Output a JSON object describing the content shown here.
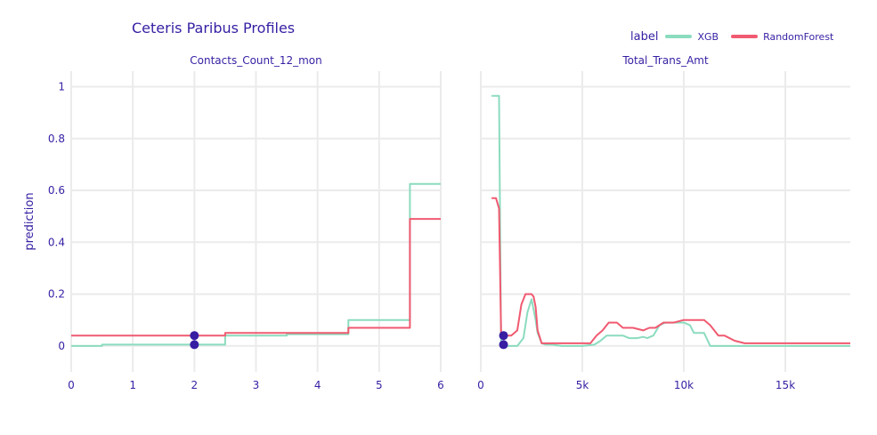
{
  "chart_data": {
    "type": "line",
    "title": "Ceteris Paribus Profiles",
    "ylabel": "prediction",
    "ylim": [
      -0.1,
      1.06
    ],
    "yticks": [
      0,
      0.2,
      0.4,
      0.6,
      0.8,
      1
    ],
    "ytick_labels": [
      "0",
      "0.2",
      "0.4",
      "0.6",
      "0.8",
      "1"
    ],
    "legend": {
      "title": "label",
      "position": "top-right",
      "entries": [
        {
          "name": "XGB",
          "color": "#8bdcbe"
        },
        {
          "name": "RandomForest",
          "color": "#f05a71"
        }
      ]
    },
    "panels": [
      {
        "title": "Contacts_Count_12_mon",
        "xlim": [
          0,
          6
        ],
        "xticks": [
          0,
          1,
          2,
          3,
          4,
          5,
          6
        ],
        "xtick_labels": [
          "0",
          "1",
          "2",
          "3",
          "4",
          "5",
          "6"
        ],
        "series": [
          {
            "name": "XGB",
            "color": "#8bdcbe",
            "type": "step",
            "x": [
              0,
              0.5,
              2.5,
              3.5,
              4.5,
              5.5,
              6
            ],
            "y": [
              0,
              0.005,
              0.04,
              0.045,
              0.1,
              0.625,
              0.625
            ]
          },
          {
            "name": "RandomForest",
            "color": "#f05a71",
            "type": "step",
            "x": [
              0,
              2.5,
              4.5,
              5.5,
              6
            ],
            "y": [
              0.04,
              0.05,
              0.07,
              0.49,
              0.49
            ]
          }
        ],
        "observation": {
          "x": 2,
          "y": [
            0.04,
            0.005
          ]
        }
      },
      {
        "title": "Total_Trans_Amt",
        "xlim": [
          0,
          18200
        ],
        "xticks": [
          0,
          5000,
          10000,
          15000
        ],
        "xtick_labels": [
          "0",
          "5k",
          "10k",
          "15k"
        ],
        "series": [
          {
            "name": "XGB",
            "color": "#8bdcbe",
            "type": "line",
            "x": [
              530,
              900,
              1000,
              1150,
              1800,
              2100,
              2300,
              2500,
              2700,
              2800,
              3000,
              3200,
              3500,
              4000,
              5000,
              5600,
              5900,
              6200,
              6500,
              7000,
              7300,
              7700,
              8000,
              8200,
              8500,
              8800,
              9100,
              9500,
              10000,
              10300,
              10500,
              11000,
              11300,
              11700,
              12500,
              13000,
              18200
            ],
            "y": [
              0.965,
              0.965,
              0,
              0,
              0,
              0.03,
              0.13,
              0.18,
              0.1,
              0.05,
              0.01,
              0.005,
              0.005,
              0,
              0,
              0.005,
              0.02,
              0.04,
              0.04,
              0.04,
              0.03,
              0.03,
              0.035,
              0.03,
              0.04,
              0.08,
              0.09,
              0.09,
              0.09,
              0.08,
              0.05,
              0.05,
              0,
              0,
              0,
              0,
              0
            ]
          },
          {
            "name": "RandomForest",
            "color": "#f05a71",
            "type": "line",
            "x": [
              530,
              750,
              900,
              1000,
              1200,
              1500,
              1800,
              2000,
              2200,
              2500,
              2600,
              2700,
              2800,
              3000,
              3200,
              3500,
              4000,
              5000,
              5400,
              5700,
              6000,
              6300,
              6700,
              7000,
              7500,
              8000,
              8300,
              8600,
              9000,
              9500,
              10000,
              10500,
              11000,
              11300,
              11700,
              12000,
              12500,
              13000,
              18200
            ],
            "y": [
              0.57,
              0.57,
              0.53,
              0.05,
              0.04,
              0.04,
              0.06,
              0.16,
              0.2,
              0.2,
              0.19,
              0.15,
              0.06,
              0.01,
              0.01,
              0.01,
              0.01,
              0.01,
              0.01,
              0.04,
              0.06,
              0.09,
              0.09,
              0.07,
              0.07,
              0.06,
              0.07,
              0.07,
              0.09,
              0.09,
              0.1,
              0.1,
              0.1,
              0.08,
              0.04,
              0.04,
              0.02,
              0.01,
              0.01
            ]
          }
        ],
        "observation": {
          "x": 1120,
          "y": [
            0.04,
            0.005
          ]
        }
      }
    ]
  },
  "observation_color": "#371ea3"
}
